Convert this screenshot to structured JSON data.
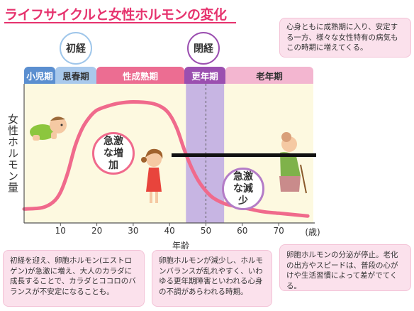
{
  "title": "ライフサイクルと女性ホルモンの変化",
  "milestones": {
    "menarche": "初経",
    "menopause": "閉経"
  },
  "stages": [
    {
      "label": "小児期",
      "color": "#5b8fd0"
    },
    {
      "label": "思春期",
      "color": "#a9c9ec"
    },
    {
      "label": "性成熟期",
      "color": "#ec6d92"
    },
    {
      "label": "更年期",
      "color": "#9b4fb0"
    },
    {
      "label": "老年期",
      "color": "#f3b6d0"
    }
  ],
  "callouts": {
    "top_right": "心身ともに成熟期に入り、安定する一方、様々な女性特有の病気もこの時期に増えてくる。",
    "bottom_left": "初経を迎え、卵胞ホルモン(エストロゲン)が急激に増え、大人のカラダに成長することで、カラダとココロのバランスが不安定になることも。",
    "bottom_mid": "卵胞ホルモンが減少し、ホルモンバランスが乱れやすく、いわゆる更年期障害といわれる心身の不調があらわれる時期。",
    "bottom_right": "卵胞ホルモンの分泌が停止。老化の出方やスピードは、普段の心がけや生活習慣によって差がでてくる。"
  },
  "bubbles": {
    "increase": "急激な増加",
    "decrease": "急激な減少"
  },
  "colors": {
    "accent": "#e6336e",
    "curve": "#f06a8c",
    "menopause_band": "#c7b5e3",
    "chart_bg": "#fdf9e0"
  },
  "chart_data": {
    "type": "line",
    "title": "ライフサイクルと女性ホルモンの変化",
    "xlabel": "年齢",
    "ylabel": "女性ホルモン量",
    "x_unit": "(歳)",
    "xlim": [
      0,
      78
    ],
    "ylim": [
      0,
      1
    ],
    "x_ticks": [
      10,
      20,
      30,
      40,
      50,
      60,
      70
    ],
    "series": [
      {
        "x": [
          0,
          5,
          8,
          10,
          12,
          14,
          16,
          18,
          20,
          23,
          26,
          30,
          35,
          38,
          40,
          42,
          44,
          46,
          48,
          50,
          52,
          55,
          58,
          62,
          66,
          70,
          74,
          78
        ],
        "y": [
          0.1,
          0.11,
          0.15,
          0.22,
          0.36,
          0.55,
          0.68,
          0.76,
          0.81,
          0.84,
          0.86,
          0.87,
          0.86,
          0.83,
          0.78,
          0.68,
          0.53,
          0.4,
          0.3,
          0.23,
          0.18,
          0.14,
          0.12,
          0.1,
          0.08,
          0.07,
          0.06,
          0.05
        ]
      }
    ],
    "bands": [
      {
        "label": "更年期",
        "from": 44.5,
        "to": 55
      }
    ],
    "marker_line_x": 50
  }
}
